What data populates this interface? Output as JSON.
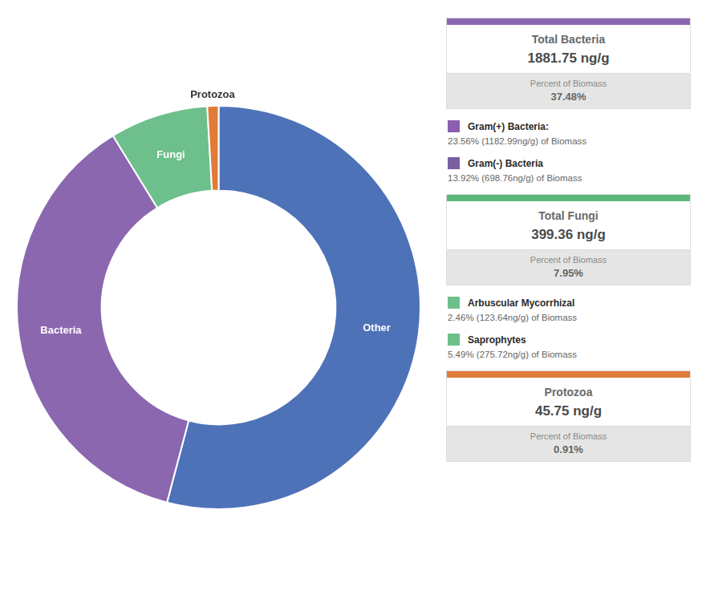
{
  "chart_data": {
    "type": "doughnut",
    "categories": [
      "Other",
      "Bacteria",
      "Fungi",
      "Protozoa"
    ],
    "values": [
      54.66,
      37.48,
      7.95,
      0.91
    ],
    "colors": [
      "#4e72b8",
      "#8b67b0",
      "#6dbf8b",
      "#e07b39"
    ],
    "legend": false,
    "annotations": [
      {
        "title": "Total Bacteria",
        "value": "1881.75 ng/g",
        "percent_label": "Percent of Biomass",
        "percent_value": "37.48%",
        "color": "#8b67b0",
        "items": [
          {
            "label": "Gram(+) Bacteria:",
            "detail": "23.56% (1182.99ng/g) of Biomass",
            "color": "#8b5fad"
          },
          {
            "label": "Gram(-) Bacteria",
            "detail": "13.92% (698.76ng/g) of Biomass",
            "color": "#7b5fa0"
          }
        ]
      },
      {
        "title": "Total Fungi",
        "value": "399.36 ng/g",
        "percent_label": "Percent of Biomass",
        "percent_value": "7.95%",
        "color": "#5cb87a",
        "items": [
          {
            "label": "Arbuscular Mycorrhizal",
            "detail": "2.46% (123.64ng/g) of Biomass",
            "color": "#6dbf8b"
          },
          {
            "label": "Saprophytes",
            "detail": "5.49% (275.72ng/g) of Biomass",
            "color": "#6dbf8b"
          }
        ]
      },
      {
        "title": "Protozoa",
        "value": "45.75 ng/g",
        "percent_label": "Percent of Biomass",
        "percent_value": "0.91%",
        "color": "#e07b39",
        "items": []
      }
    ]
  }
}
